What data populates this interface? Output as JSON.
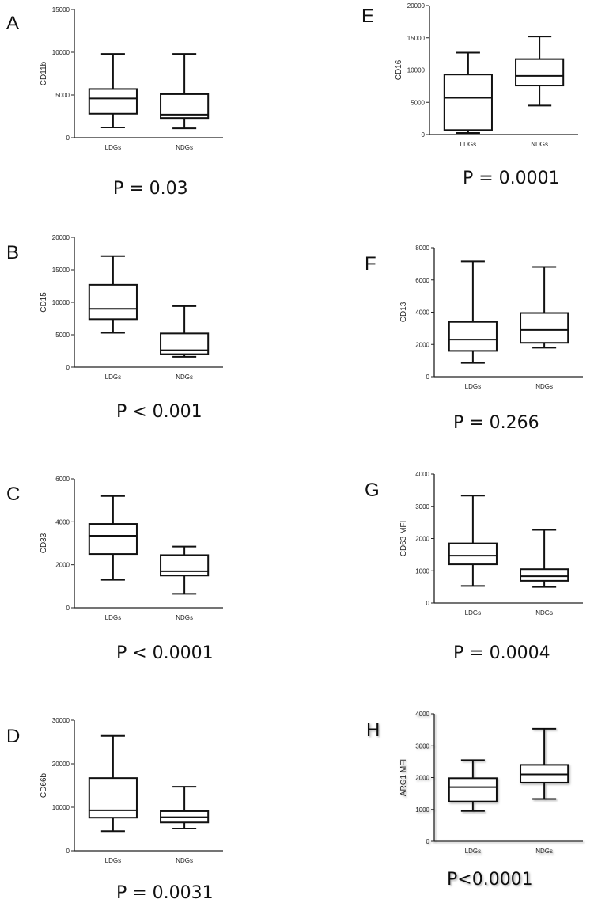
{
  "chart_data": [
    {
      "panel": "A",
      "type": "box",
      "ylabel": "CD11b",
      "ylim": [
        0,
        15000
      ],
      "yticks": [
        0,
        5000,
        10000,
        15000
      ],
      "categories": [
        "LDGs",
        "NDGs"
      ],
      "boxes": [
        {
          "min": 1200,
          "q1": 2800,
          "median": 4600,
          "q3": 5700,
          "max": 9800
        },
        {
          "min": 1100,
          "q1": 2300,
          "median": 2700,
          "q3": 5100,
          "max": 9800
        }
      ],
      "pvalue": "P = 0.03"
    },
    {
      "panel": "B",
      "type": "box",
      "ylabel": "CD15",
      "ylim": [
        0,
        20000
      ],
      "yticks": [
        0,
        5000,
        10000,
        15000,
        20000
      ],
      "categories": [
        "LDGs",
        "NDGs"
      ],
      "boxes": [
        {
          "min": 5300,
          "q1": 7400,
          "median": 9000,
          "q3": 12700,
          "max": 17100
        },
        {
          "min": 1600,
          "q1": 2000,
          "median": 2600,
          "q3": 5200,
          "max": 9400
        }
      ],
      "pvalue": "P < 0.001"
    },
    {
      "panel": "C",
      "type": "box",
      "ylabel": "CD33",
      "ylim": [
        0,
        6000
      ],
      "yticks": [
        0,
        2000,
        4000,
        6000
      ],
      "categories": [
        "LDGs",
        "NDGs"
      ],
      "boxes": [
        {
          "min": 1300,
          "q1": 2500,
          "median": 3350,
          "q3": 3900,
          "max": 5200
        },
        {
          "min": 650,
          "q1": 1500,
          "median": 1700,
          "q3": 2450,
          "max": 2850
        }
      ],
      "pvalue": "P < 0.0001"
    },
    {
      "panel": "D",
      "type": "box",
      "ylabel": "CD66b",
      "ylim": [
        0,
        30000
      ],
      "yticks": [
        0,
        10000,
        20000,
        30000
      ],
      "categories": [
        "LDGs",
        "NDGs"
      ],
      "boxes": [
        {
          "min": 4500,
          "q1": 7600,
          "median": 9300,
          "q3": 16700,
          "max": 26400
        },
        {
          "min": 5100,
          "q1": 6500,
          "median": 7700,
          "q3": 9100,
          "max": 14700
        }
      ],
      "pvalue": "P = 0.0031"
    },
    {
      "panel": "E",
      "type": "box",
      "ylabel": "CD16",
      "ylim": [
        0,
        20000
      ],
      "yticks": [
        0,
        5000,
        10000,
        15000,
        20000
      ],
      "categories": [
        "LDGs",
        "NDGs"
      ],
      "boxes": [
        {
          "min": 250,
          "q1": 700,
          "median": 5700,
          "q3": 9300,
          "max": 12700
        },
        {
          "min": 4500,
          "q1": 7600,
          "median": 9100,
          "q3": 11700,
          "max": 15200
        }
      ],
      "pvalue": "P = 0.0001"
    },
    {
      "panel": "F",
      "type": "box",
      "ylabel": "CD13",
      "ylim": [
        0,
        8000
      ],
      "yticks": [
        0,
        2000,
        4000,
        6000,
        8000
      ],
      "categories": [
        "LDGs",
        "NDGs"
      ],
      "boxes": [
        {
          "min": 850,
          "q1": 1600,
          "median": 2300,
          "q3": 3400,
          "max": 7150
        },
        {
          "min": 1800,
          "q1": 2100,
          "median": 2900,
          "q3": 3950,
          "max": 6800
        }
      ],
      "pvalue": "P = 0.266"
    },
    {
      "panel": "G",
      "type": "box",
      "ylabel": "CD63 MFI",
      "ylim": [
        0,
        4000
      ],
      "yticks": [
        0,
        1000,
        2000,
        3000,
        4000
      ],
      "categories": [
        "LDGs",
        "NDGs"
      ],
      "boxes": [
        {
          "min": 530,
          "q1": 1200,
          "median": 1470,
          "q3": 1850,
          "max": 3330
        },
        {
          "min": 500,
          "q1": 690,
          "median": 830,
          "q3": 1050,
          "max": 2270
        }
      ],
      "pvalue": "P = 0.0004"
    },
    {
      "panel": "H",
      "type": "box",
      "ylabel": "ARG1 MFI",
      "ylim": [
        0,
        4000
      ],
      "yticks": [
        0,
        1000,
        2000,
        3000,
        4000
      ],
      "categories": [
        "LDGs",
        "NDGs"
      ],
      "boxes": [
        {
          "min": 950,
          "q1": 1250,
          "median": 1700,
          "q3": 1980,
          "max": 2550
        },
        {
          "min": 1330,
          "q1": 1840,
          "median": 2100,
          "q3": 2400,
          "max": 3530
        }
      ],
      "pvalue": "P<0.0001"
    }
  ]
}
